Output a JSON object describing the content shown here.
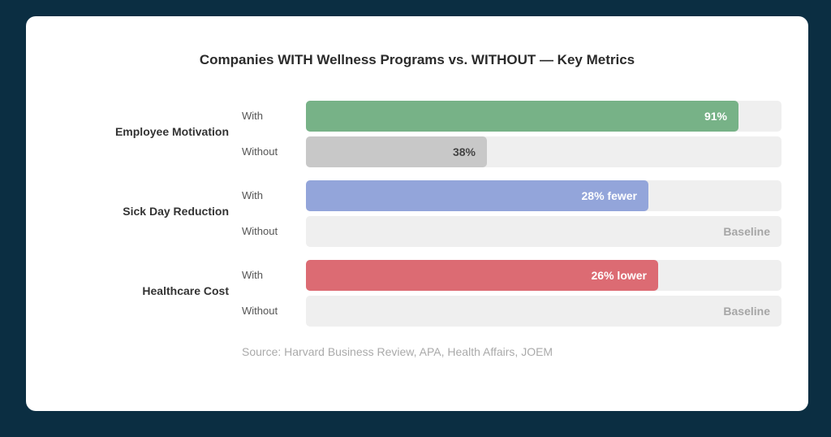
{
  "chart_data": {
    "type": "bar",
    "orientation": "horizontal",
    "title": "Companies WITH Wellness Programs vs. WITHOUT — Key Metrics",
    "source": "Source: Harvard Business Review, APA, Health Affairs, JOEM",
    "groups": [
      {
        "name": "Employee Motivation",
        "rows": [
          {
            "label": "With",
            "value": 91,
            "text": "91%",
            "color": "#77b287",
            "text_style": "light"
          },
          {
            "label": "Without",
            "value": 38,
            "text": "38%",
            "color": "#c8c8c8",
            "text_style": "dark"
          }
        ]
      },
      {
        "name": "Sick Day Reduction",
        "rows": [
          {
            "label": "With",
            "value": 72,
            "text": "28% fewer",
            "color": "#93a5da",
            "text_style": "light"
          },
          {
            "label": "Without",
            "value": 0,
            "text": "Baseline",
            "color": "#efefef",
            "text_style": "baseline"
          }
        ]
      },
      {
        "name": "Healthcare Cost",
        "rows": [
          {
            "label": "With",
            "value": 74,
            "text": "26% lower",
            "color": "#dc6b73",
            "text_style": "light"
          },
          {
            "label": "Without",
            "value": 0,
            "text": "Baseline",
            "color": "#efefef",
            "text_style": "baseline"
          }
        ]
      }
    ],
    "xlim": [
      0,
      100
    ]
  }
}
